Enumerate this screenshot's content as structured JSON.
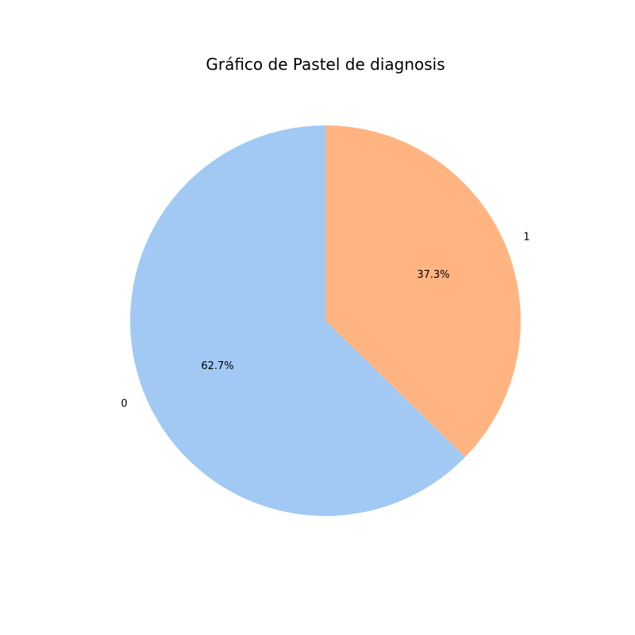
{
  "chart_data": {
    "type": "pie",
    "title": "Gráfico de Pastel de diagnosis",
    "categories": [
      "0",
      "1"
    ],
    "values": [
      62.7,
      37.3
    ],
    "percent_labels": [
      "62.7%",
      "37.3%"
    ],
    "colors": [
      "#a1c9f4",
      "#ffb482"
    ],
    "start_angle_deg": 90,
    "direction": "counterclockwise",
    "legend": "none"
  }
}
